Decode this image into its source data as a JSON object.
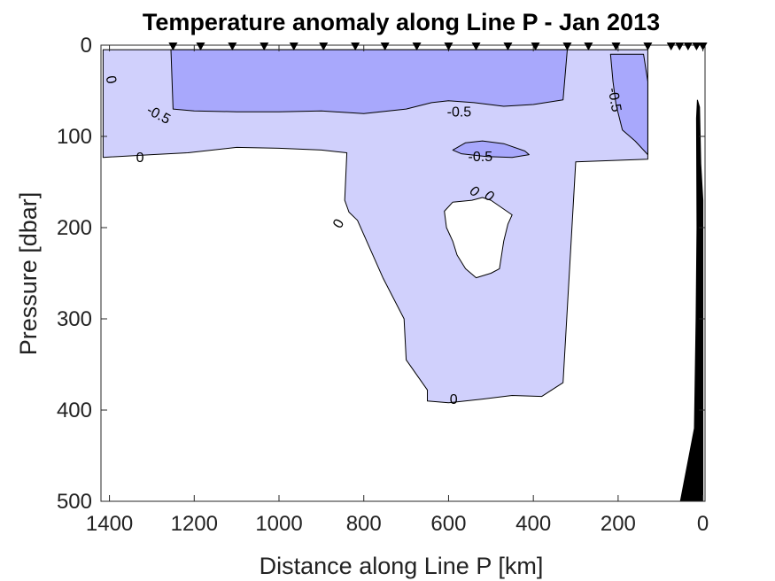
{
  "chart_data": {
    "type": "contour",
    "title": "Temperature anomaly along Line P - Jan 2013",
    "xlabel": "Distance along Line P [km]",
    "ylabel": "Pressure [dbar]",
    "xlim": [
      1420,
      -5
    ],
    "ylim": [
      500,
      0
    ],
    "x_reversed": true,
    "y_reversed": true,
    "xticks": [
      1400,
      1200,
      1000,
      800,
      600,
      400,
      200,
      0
    ],
    "yticks": [
      0,
      100,
      200,
      300,
      400,
      500
    ],
    "stations_km": [
      1250,
      1185,
      1110,
      1035,
      965,
      895,
      820,
      750,
      675,
      600,
      535,
      460,
      395,
      320,
      270,
      205,
      130,
      75,
      55,
      35,
      15,
      0
    ],
    "contour_levels": [
      0,
      -0.5
    ],
    "contour_labels": [
      {
        "text": "0",
        "km": 1398,
        "dbar": 38,
        "angle": 80
      },
      {
        "text": "-0.5",
        "km": 1285,
        "dbar": 77,
        "angle": 28
      },
      {
        "text": "0",
        "km": 1328,
        "dbar": 124,
        "angle": 0
      },
      {
        "text": "-0.5",
        "km": 575,
        "dbar": 74,
        "angle": 0
      },
      {
        "text": "-0.5",
        "km": 525,
        "dbar": 123,
        "angle": 0
      },
      {
        "text": "0",
        "km": 540,
        "dbar": 161,
        "angle": 45
      },
      {
        "text": "0",
        "km": 505,
        "dbar": 166,
        "angle": 45
      },
      {
        "text": "0",
        "km": 858,
        "dbar": 196,
        "angle": -60
      },
      {
        "text": "-0.5",
        "km": 210,
        "dbar": 60,
        "angle": 80
      },
      {
        "text": "0",
        "km": 588,
        "dbar": 389,
        "angle": 0
      }
    ],
    "regions": [
      {
        "level": "0 to -0.5",
        "color": "#d0d0fc",
        "points": [
          [
            1415,
            5
          ],
          [
            130,
            5
          ],
          [
            130,
            125
          ],
          [
            300,
            128
          ],
          [
            330,
            370
          ],
          [
            380,
            385
          ],
          [
            450,
            384
          ],
          [
            520,
            388
          ],
          [
            600,
            392
          ],
          [
            650,
            390
          ],
          [
            650,
            378
          ],
          [
            700,
            345
          ],
          [
            705,
            300
          ],
          [
            755,
            255
          ],
          [
            815,
            192
          ],
          [
            835,
            183
          ],
          [
            845,
            170
          ],
          [
            840,
            118
          ],
          [
            900,
            115
          ],
          [
            1000,
            113
          ],
          [
            1100,
            112
          ],
          [
            1215,
            118
          ],
          [
            1300,
            120
          ],
          [
            1415,
            123
          ]
        ]
      },
      {
        "level": "< -0.5",
        "color": "#a8a8fc",
        "points": [
          [
            1255,
            5
          ],
          [
            320,
            5
          ],
          [
            330,
            60
          ],
          [
            400,
            65
          ],
          [
            470,
            67
          ],
          [
            540,
            63
          ],
          [
            600,
            61
          ],
          [
            640,
            63
          ],
          [
            700,
            70
          ],
          [
            800,
            75
          ],
          [
            900,
            72
          ],
          [
            1000,
            73
          ],
          [
            1100,
            73
          ],
          [
            1200,
            72
          ],
          [
            1250,
            70
          ]
        ]
      },
      {
        "level": "< -0.5",
        "color": "#a8a8fc",
        "points": [
          [
            218,
            10
          ],
          [
            140,
            10
          ],
          [
            130,
            40
          ],
          [
            130,
            120
          ],
          [
            160,
            105
          ],
          [
            190,
            93
          ],
          [
            205,
            65
          ],
          [
            212,
            40
          ]
        ]
      },
      {
        "level": "< -0.5",
        "color": "#a8a8fc",
        "points": [
          [
            590,
            115
          ],
          [
            560,
            107
          ],
          [
            520,
            105
          ],
          [
            470,
            108
          ],
          [
            420,
            116
          ],
          [
            410,
            120
          ],
          [
            450,
            123
          ],
          [
            510,
            122
          ],
          [
            570,
            119
          ]
        ]
      },
      {
        "level": "> 0",
        "color": "#ffffff",
        "points": [
          [
            610,
            182
          ],
          [
            590,
            172
          ],
          [
            545,
            170
          ],
          [
            520,
            167
          ],
          [
            500,
            170
          ],
          [
            450,
            186
          ],
          [
            460,
            196
          ],
          [
            470,
            215
          ],
          [
            480,
            245
          ],
          [
            500,
            250
          ],
          [
            535,
            255
          ],
          [
            560,
            245
          ],
          [
            580,
            230
          ],
          [
            590,
            215
          ],
          [
            605,
            200
          ]
        ]
      }
    ],
    "land": {
      "color": "#000000",
      "label": "",
      "points": [
        [
          53,
          500
        ],
        [
          20,
          420
        ],
        [
          16,
          300
        ],
        [
          14,
          200
        ],
        [
          15,
          80
        ],
        [
          13,
          60
        ],
        [
          8,
          68
        ],
        [
          5,
          130
        ],
        [
          0,
          170
        ],
        [
          0,
          500
        ]
      ]
    }
  }
}
